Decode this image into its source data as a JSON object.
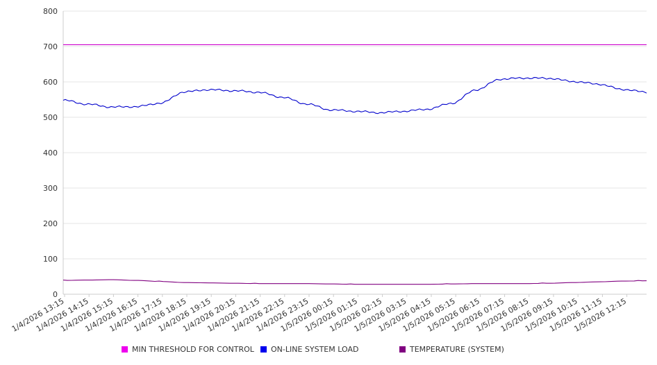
{
  "chart_data": {
    "type": "line",
    "title": "",
    "xlabel": "",
    "ylabel": "",
    "ylim": [
      0,
      800
    ],
    "y_ticks": [
      "0",
      "100",
      "200",
      "300",
      "400",
      "500",
      "600",
      "700",
      "800"
    ],
    "grid": true,
    "legend_position": "bottom",
    "x_ticks": [
      "1/4/2026 13:15",
      "1/4/2026 14:15",
      "1/4/2026 15:15",
      "1/4/2026 16:15",
      "1/4/2026 17:15",
      "1/4/2026 18:15",
      "1/4/2026 19:15",
      "1/4/2026 20:15",
      "1/4/2026 21:15",
      "1/4/2026 22:15",
      "1/4/2026 23:15",
      "1/5/2026 00:15",
      "1/5/2026 01:15",
      "1/5/2026 02:15",
      "1/5/2026 03:15",
      "1/5/2026 04:15",
      "1/5/2026 05:15",
      "1/5/2026 06:15",
      "1/5/2026 07:15",
      "1/5/2026 08:15",
      "1/5/2026 09:15",
      "1/5/2026 10:15",
      "1/5/2026 11:15",
      "1/5/2026 12:15"
    ],
    "series": [
      {
        "name": "MIN THRESHOLD FOR CONTROL",
        "color": "#cc00cc",
        "values": [
          705,
          705,
          705,
          705,
          705,
          705,
          705,
          705,
          705,
          705,
          705,
          705,
          705,
          705,
          705,
          705,
          705,
          705,
          705,
          705,
          705,
          705,
          705,
          705,
          705
        ]
      },
      {
        "name": "ON-LINE SYSTEM LOAD",
        "color": "#0000cc",
        "values": [
          548,
          537,
          529,
          530,
          540,
          572,
          578,
          575,
          571,
          557,
          538,
          521,
          517,
          513,
          517,
          523,
          540,
          578,
          608,
          611,
          610,
          601,
          594,
          579,
          571
        ]
      },
      {
        "name": "TEMPERATURE (SYSTEM)",
        "color": "#800080",
        "values": [
          39,
          40,
          41,
          39,
          36,
          33,
          32,
          31,
          30,
          30,
          30,
          29,
          28,
          28,
          28,
          28,
          29,
          30,
          30,
          30,
          31,
          33,
          35,
          37,
          38
        ]
      }
    ]
  },
  "legend": [
    {
      "label": "MIN THRESHOLD FOR CONTROL",
      "color": "#ee00ee"
    },
    {
      "label": "ON-LINE SYSTEM LOAD",
      "color": "#0000ee"
    },
    {
      "label": "TEMPERATURE (SYSTEM)",
      "color": "#800080"
    }
  ]
}
